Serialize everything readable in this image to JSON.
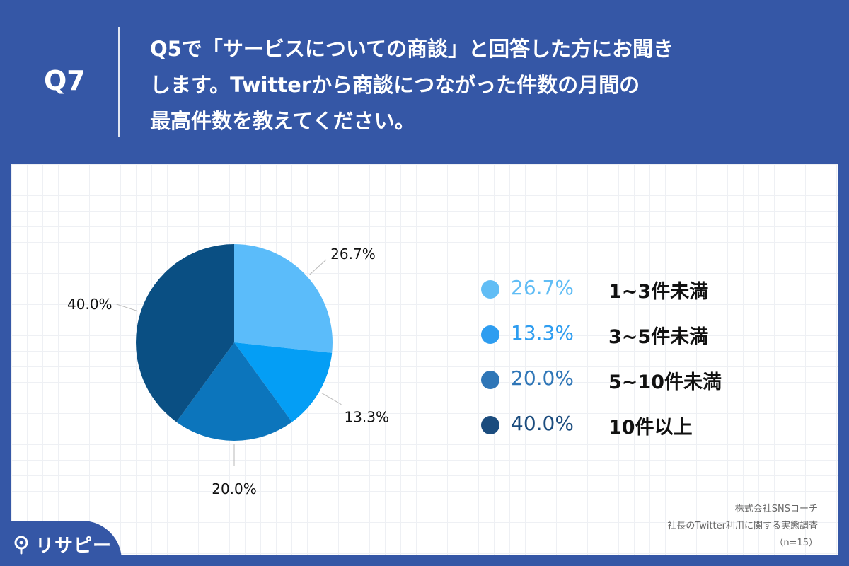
{
  "header": {
    "q_label": "Q7",
    "question_lines": [
      "Q5で「サービスについての商談」と回答した方にお聞き",
      "します。Twitterから商談につながった件数の月間の",
      "最高件数を教えてください。"
    ]
  },
  "chart_data": {
    "type": "pie",
    "title": "",
    "slices": [
      {
        "label": "1~3件未満",
        "value": 26.7,
        "display": "26.7%",
        "color": "#5bbcfa"
      },
      {
        "label": "3~5件未満",
        "value": 13.3,
        "display": "13.3%",
        "color": "#049ef5"
      },
      {
        "label": "5~10件未満",
        "value": 20.0,
        "display": "20.0%",
        "color": "#0c75bc"
      },
      {
        "label": "10件以上",
        "value": 40.0,
        "display": "40.0%",
        "color": "#0a4f83"
      }
    ],
    "legend_position": "right",
    "start_angle": "12 o'clock",
    "direction": "clockwise"
  },
  "legend_colors": [
    "#61bdf5",
    "#2e9df0",
    "#2f76b7",
    "#1b4c7e"
  ],
  "credits": {
    "company": "株式会社SNSコーチ",
    "survey": "社長のTwitter利用に関する実態調査",
    "sample": "（n=15）"
  },
  "logo": {
    "text": "リサピー"
  }
}
